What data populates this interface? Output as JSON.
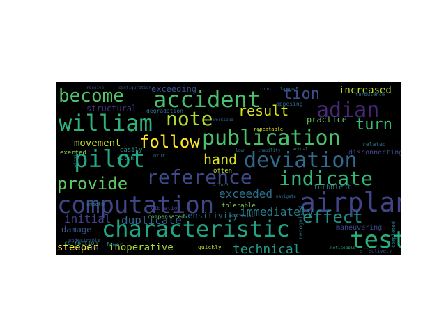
{
  "wordcloud": {
    "background": "#000000",
    "words": [
      {
        "text": "become",
        "color": "#52c56a"
      },
      {
        "text": "accident",
        "color": "#48c16e"
      },
      {
        "text": "tion",
        "color": "#3d4e8a"
      },
      {
        "text": "increased",
        "color": "#b5de2b"
      },
      {
        "text": "exceeding",
        "color": "#3b528b"
      },
      {
        "text": "adian",
        "color": "#482878"
      },
      {
        "text": "william",
        "color": "#2db27d"
      },
      {
        "text": "note",
        "color": "#addc30"
      },
      {
        "text": "result",
        "color": "#d8e219"
      },
      {
        "text": "turn",
        "color": "#3bbb75"
      },
      {
        "text": "publication",
        "color": "#4ac16d"
      },
      {
        "text": "follow",
        "color": "#fde725"
      },
      {
        "text": "pilot",
        "color": "#22a884"
      },
      {
        "text": "movement",
        "color": "#c2df23"
      },
      {
        "text": "hand",
        "color": "#dde318"
      },
      {
        "text": "deviation",
        "color": "#31688e"
      },
      {
        "text": "reference",
        "color": "#3e4a89"
      },
      {
        "text": "indicate",
        "color": "#35b779"
      },
      {
        "text": "provide",
        "color": "#5ec962"
      },
      {
        "text": "airplane",
        "color": "#414487"
      },
      {
        "text": "exceeded",
        "color": "#2c728e"
      },
      {
        "text": "computation",
        "color": "#3f4788"
      },
      {
        "text": "immediately",
        "color": "#277f8e"
      },
      {
        "text": "effect",
        "color": "#21918c"
      },
      {
        "text": "initial",
        "color": "#433e85"
      },
      {
        "text": "duplicate",
        "color": "#31688e"
      },
      {
        "text": "characteristic",
        "color": "#20a486"
      },
      {
        "text": "test",
        "color": "#29af7f"
      },
      {
        "text": "steeper",
        "color": "#fde725"
      },
      {
        "text": "inoperative",
        "color": "#a8db34"
      },
      {
        "text": "technical",
        "color": "#1e9c89"
      },
      {
        "text": "sensitivity",
        "color": "#2a768e"
      },
      {
        "text": "structural",
        "color": "#46327e"
      },
      {
        "text": "practice",
        "color": "#5ec962"
      },
      {
        "text": "disconnecting",
        "color": "#3e4989"
      },
      {
        "text": "maneuvering",
        "color": "#404588"
      },
      {
        "text": "damage",
        "color": "#3b528b"
      },
      {
        "text": "compensated",
        "color": "#5ec962"
      },
      {
        "text": "vibration",
        "color": "#404588"
      },
      {
        "text": "tolerable",
        "color": "#7ad151"
      },
      {
        "text": "exerted",
        "color": "#86d549"
      },
      {
        "text": "easily",
        "color": "#21918c"
      },
      {
        "text": "dutch",
        "color": "#22a884"
      },
      {
        "text": "often",
        "color": "#c2df23"
      },
      {
        "text": "correction",
        "color": "#1f9e89"
      },
      {
        "text": "fewer",
        "color": "#25858e"
      },
      {
        "text": "quickly",
        "color": "#b5de2b"
      },
      {
        "text": "turbulent",
        "color": "#2c728e"
      },
      {
        "text": "recognized",
        "color": "#2c728e"
      },
      {
        "text": "completed",
        "color": "#25858e"
      },
      {
        "text": "effectively",
        "color": "#3e4a89"
      },
      {
        "text": "noticeable",
        "color": "#22a884"
      },
      {
        "text": "turbulence",
        "color": "#2c728e"
      },
      {
        "text": "related",
        "color": "#2c728e"
      },
      {
        "text": "smooth",
        "color": "#25858e"
      },
      {
        "text": "degradation",
        "color": "#2c728e"
      },
      {
        "text": "opposing",
        "color": "#31688e"
      },
      {
        "text": "input",
        "color": "#3f4788"
      },
      {
        "text": "repeatable",
        "color": "#dde318"
      },
      {
        "text": "navigate",
        "color": "#2c728e"
      },
      {
        "text": "undesirable",
        "color": "#3b528b"
      },
      {
        "text": "vectoring",
        "color": "#3b528b"
      },
      {
        "text": "largest",
        "color": "#2c728e"
      },
      {
        "text": "configuration",
        "color": "#3b528b"
      },
      {
        "text": "receive",
        "color": "#3b528b"
      },
      {
        "text": "workload",
        "color": "#31688e"
      },
      {
        "text": "inability",
        "color": "#2c728e"
      },
      {
        "text": "beneficial",
        "color": "#2c728e"
      },
      {
        "text": "otur",
        "color": "#2c728e"
      },
      {
        "text": "lown",
        "color": "#2c728e"
      },
      {
        "text": "afford",
        "color": "#2c728e"
      },
      {
        "text": "actual",
        "color": "#2c728e"
      },
      {
        "text": "within",
        "color": "#2c728e"
      }
    ]
  }
}
